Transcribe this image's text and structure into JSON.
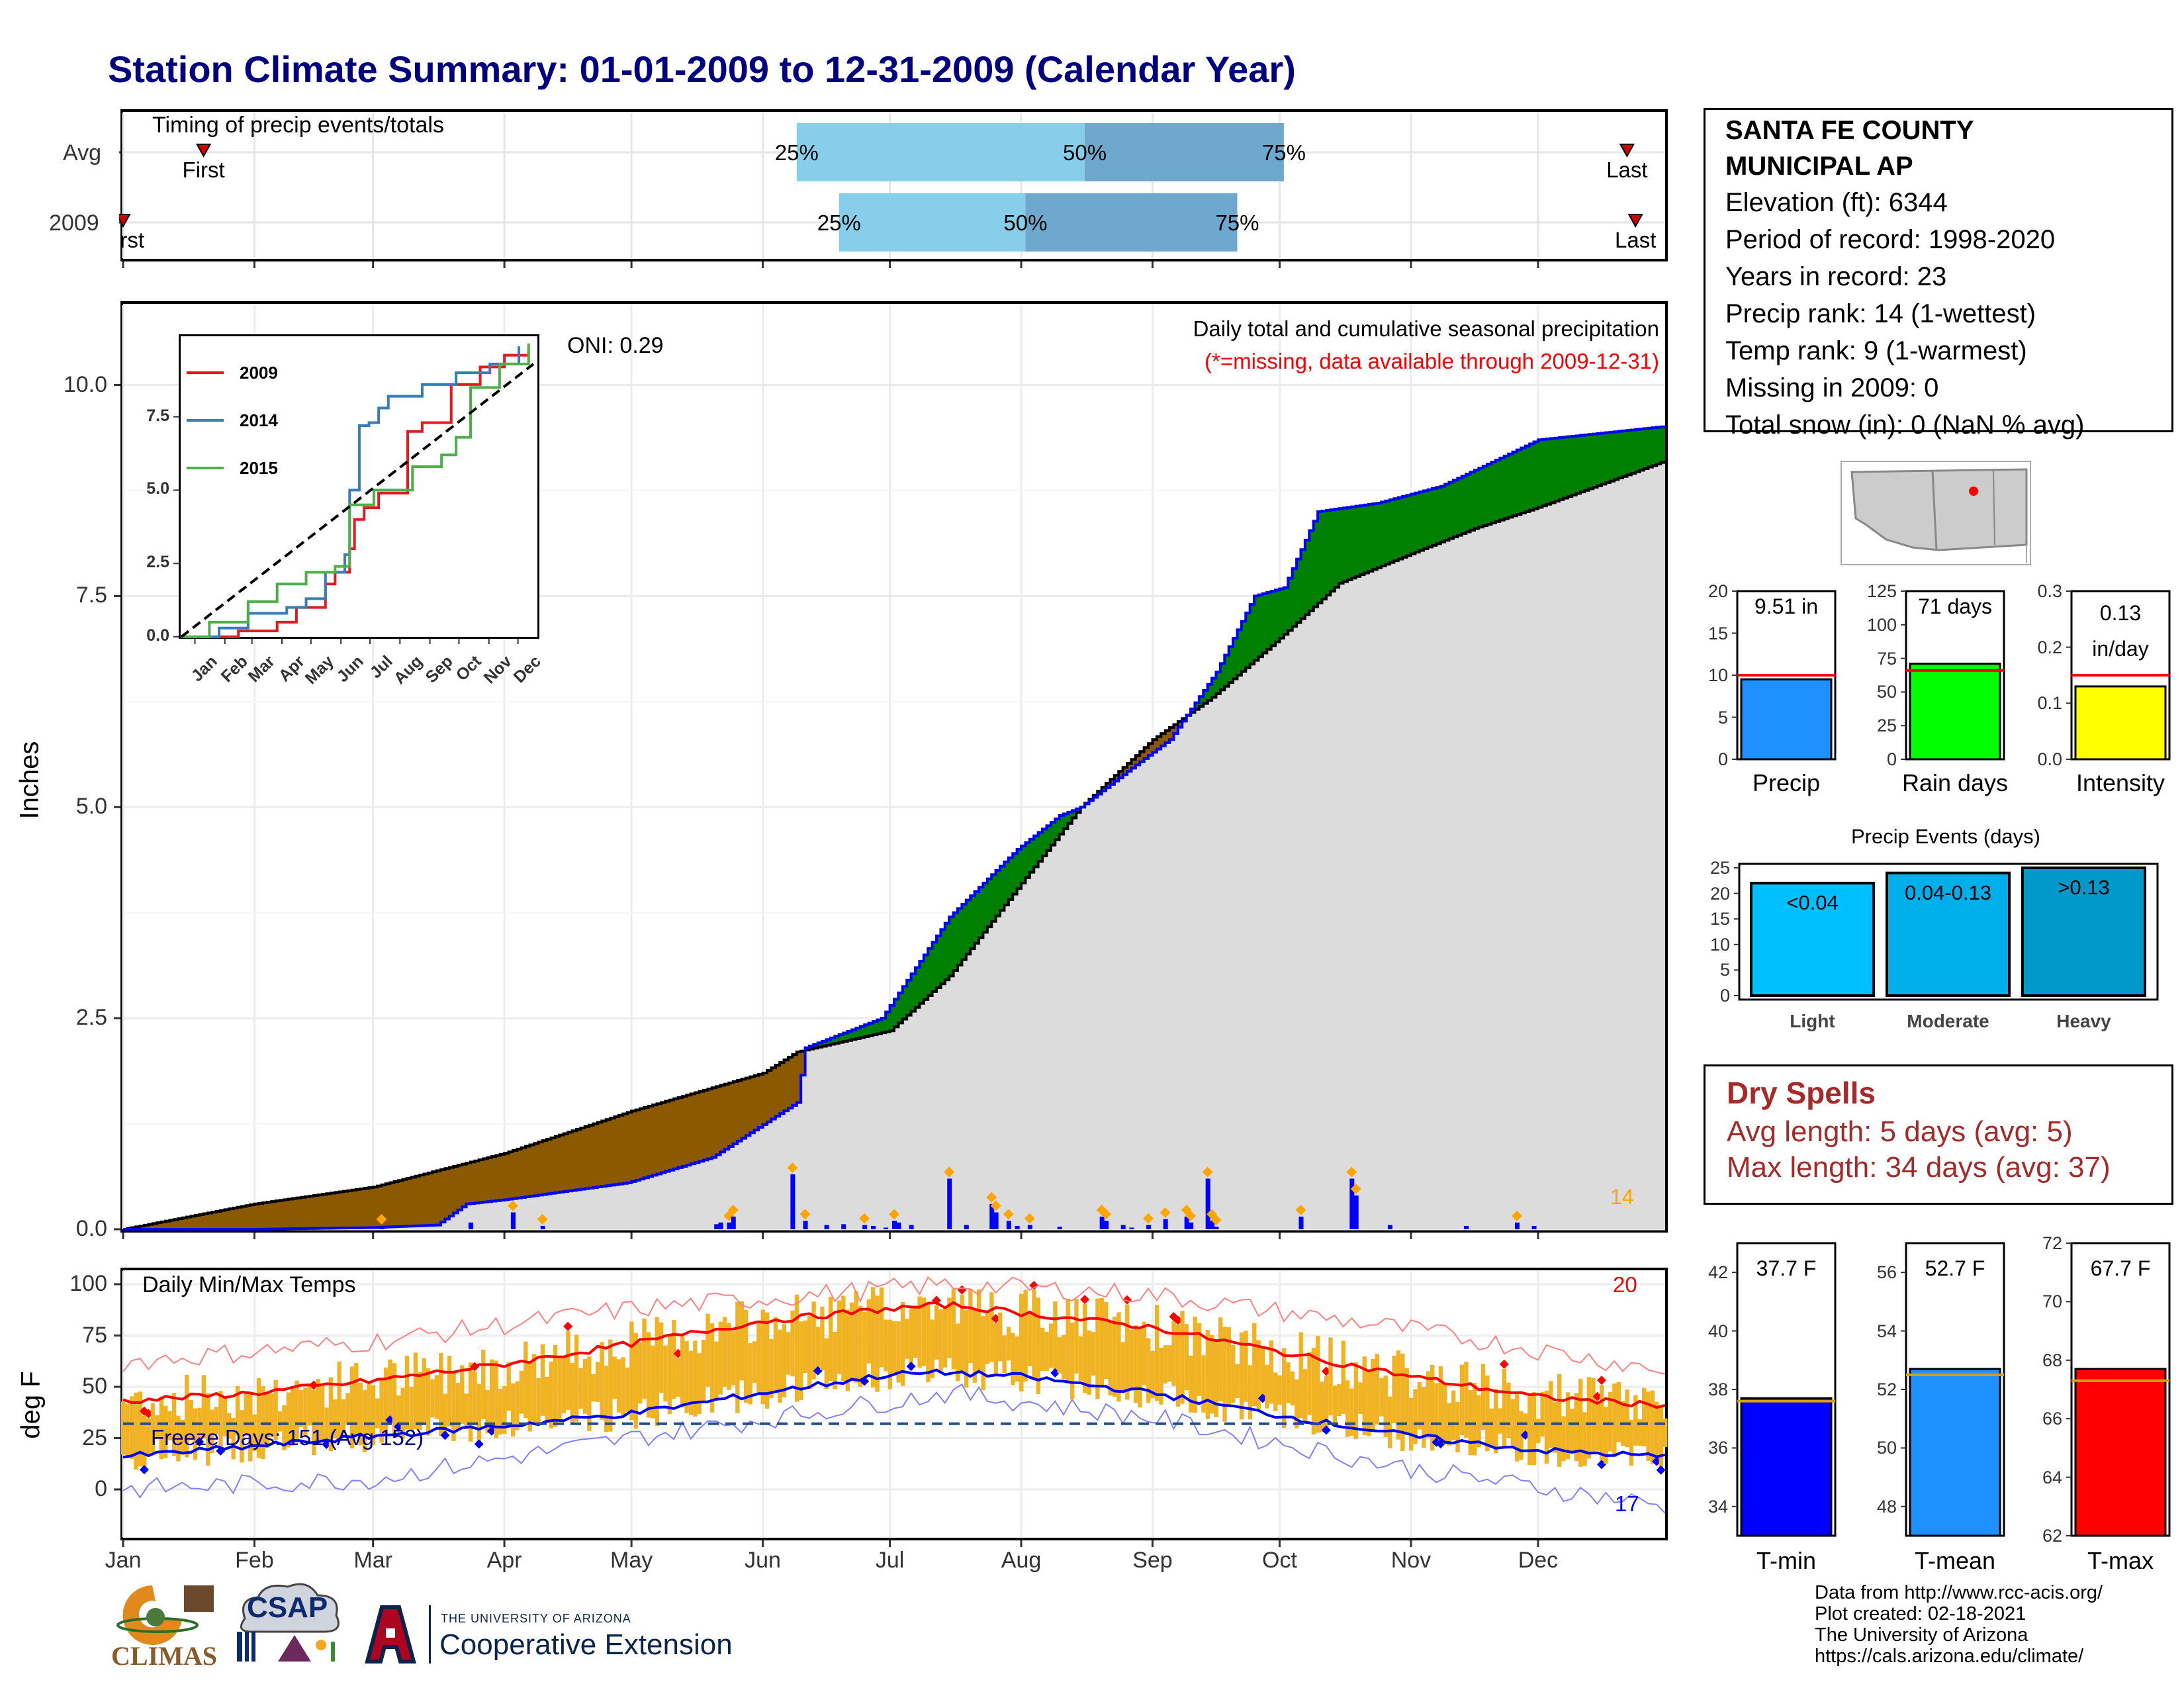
{
  "title": "Station Climate Summary: 01-01-2009 to 12-31-2009 (Calendar Year)",
  "colors": {
    "above_avg": "#008000",
    "below_avg": "#8B5A00",
    "cumulative_fill": "#DCDCDC",
    "daily_bar": "#0000FF",
    "event_marker": "#FFA500",
    "range_bar": "#F0B323",
    "tmax_line": "#FF0000",
    "tmin_line": "#0000FF",
    "timing_q1": "#87CEEB",
    "timing_q2": "#6FA8CF",
    "title": "#000080",
    "dry_spell": "#A52A2A"
  },
  "timing_panel": {
    "heading": "Timing of precip events/totals",
    "rows": [
      {
        "label": "Avg",
        "first_label": "First",
        "last_label": "Last",
        "q25": "25%",
        "q50": "50%",
        "q75": "75%"
      },
      {
        "label": "2009",
        "first_label": "First",
        "last_label": "Last",
        "q25": "25%",
        "q50": "50%",
        "q75": "75%"
      }
    ]
  },
  "precip_panel": {
    "subtitle": "Daily total and cumulative seasonal precipitation",
    "missing_note": "(*=missing, data available through 2009-12-31)",
    "oni": "ONI: 0.29",
    "ylabel": "Inches",
    "yticks": [
      "0.0",
      "2.5",
      "5.0",
      "7.5",
      "10.0"
    ],
    "count_label": "14"
  },
  "inset": {
    "yticks": [
      "0.0",
      "2.5",
      "5.0",
      "7.5"
    ],
    "months": [
      "Jan",
      "Feb",
      "Mar",
      "Apr",
      "May",
      "Jun",
      "Jul",
      "Aug",
      "Sep",
      "Oct",
      "Nov",
      "Dec"
    ],
    "legend": [
      {
        "name": "2009",
        "color": "#E41A1C"
      },
      {
        "name": "2014",
        "color": "#377EB8"
      },
      {
        "name": "2015",
        "color": "#4DAF4A"
      }
    ]
  },
  "temp_panel": {
    "title": "Daily Min/Max Temps",
    "ylabel": "deg F",
    "yticks": [
      "0",
      "25",
      "50",
      "75",
      "100"
    ],
    "freeze_label": "Freeze Days: 151 (Avg 152)",
    "max_count": "20",
    "min_count": "17"
  },
  "x_months": [
    "Jan",
    "Feb",
    "Mar",
    "Apr",
    "May",
    "Jun",
    "Jul",
    "Aug",
    "Sep",
    "Oct",
    "Nov",
    "Dec"
  ],
  "station": {
    "name_line1": "SANTA FE COUNTY",
    "name_line2": "MUNICIPAL AP",
    "elevation": "Elevation (ft): 6344",
    "period": "Period of record: 1998-2020",
    "years": "Years in record: 23",
    "precip_rank": "Precip rank: 14 (1-wettest)",
    "temp_rank": "Temp rank: 9 (1-warmest)",
    "missing": "Missing in 2009: 0",
    "snow": "Total snow (in): 0 (NaN % avg)"
  },
  "mini_bars": [
    {
      "name": "Precip",
      "value_label": "9.51 in",
      "yticks": [
        "0",
        "5",
        "10",
        "15",
        "20"
      ],
      "color": "#1E90FF"
    },
    {
      "name": "Rain days",
      "value_label": "71 days",
      "yticks": [
        "0",
        "25",
        "50",
        "75",
        "100",
        "125"
      ],
      "color": "#00FF00"
    },
    {
      "name": "Intensity",
      "value_label": "0.13 in/day",
      "yticks": [
        "0.0",
        "0.1",
        "0.2",
        "0.3"
      ],
      "color": "#FFFF00"
    }
  ],
  "events": {
    "title": "Precip Events (days)",
    "yticks": [
      "0",
      "5",
      "10",
      "15",
      "20",
      "25"
    ],
    "bars": [
      {
        "name": "Light",
        "range": "<0.04",
        "color": "#00BFFF"
      },
      {
        "name": "Moderate",
        "range": "0.04-0.13",
        "color": "#00AEEA"
      },
      {
        "name": "Heavy",
        "range": ">0.13",
        "color": "#0099C9"
      }
    ]
  },
  "dry_spells": {
    "title": "Dry Spells",
    "avg": "Avg length: 5 days (avg: 5)",
    "max": "Max length: 34 days (avg: 37)"
  },
  "temp_bars": [
    {
      "name": "T-min",
      "value_label": "37.7 F",
      "yticks": [
        "34",
        "36",
        "38",
        "40",
        "42"
      ],
      "color": "#0000FF"
    },
    {
      "name": "T-mean",
      "value_label": "52.7 F",
      "yticks": [
        "48",
        "50",
        "52",
        "54",
        "56"
      ],
      "color": "#1E90FF"
    },
    {
      "name": "T-max",
      "value_label": "67.7 F",
      "yticks": [
        "62",
        "64",
        "66",
        "68",
        "70",
        "72"
      ],
      "color": "#FF0000"
    }
  ],
  "credits": [
    "Data from http://www.rcc-acis.org/",
    "Plot created: 02-18-2021",
    "The University of Arizona",
    "https://cals.arizona.edu/climate/"
  ],
  "logos": {
    "climas": "CLIMAS",
    "csap": "CSAP",
    "ua_small": "THE UNIVERSITY OF ARIZONA",
    "ua_big": "Cooperative Extension"
  },
  "chart_data": [
    {
      "type": "line",
      "title": "Daily total and cumulative seasonal precipitation",
      "ylabel": "Inches",
      "ylim": [
        0,
        10
      ],
      "x_unit": "day of year",
      "series": [
        {
          "name": "2009",
          "x": [
            1,
            32,
            60,
            75,
            82,
            91,
            120,
            140,
            160,
            162,
            180,
            196,
            212,
            222,
            227,
            240,
            248,
            259,
            268,
            275,
            283,
            297,
            312,
            335,
            365
          ],
          "values": [
            0.0,
            0.0,
            0.02,
            0.05,
            0.3,
            0.35,
            0.55,
            0.85,
            1.5,
            2.15,
            2.5,
            3.7,
            4.5,
            4.9,
            5.0,
            5.5,
            5.8,
            6.6,
            7.5,
            7.6,
            8.5,
            8.6,
            8.8,
            9.35,
            9.51
          ]
        },
        {
          "name": "Avg",
          "x": [
            1,
            32,
            60,
            91,
            121,
            152,
            160,
            182,
            196,
            213,
            227,
            244,
            258,
            274,
            288,
            305,
            320,
            335,
            365
          ],
          "values": [
            0.0,
            0.3,
            0.5,
            0.9,
            1.4,
            1.85,
            2.1,
            2.35,
            3.0,
            4.1,
            5.0,
            5.8,
            6.3,
            7.0,
            7.65,
            8.0,
            8.3,
            8.55,
            9.1
          ]
        }
      ],
      "daily_precip": {
        "day": [
          62,
          83,
          93,
          100,
          141,
          142,
          144,
          145,
          159,
          162,
          167,
          171,
          176,
          178,
          181,
          183,
          184,
          187,
          196,
          200,
          206,
          207,
          210,
          212,
          215,
          222,
          232,
          233,
          237,
          239,
          243,
          247,
          252,
          253,
          257,
          258,
          259,
          279,
          291,
          292,
          300,
          318,
          330,
          334
        ],
        "inches": [
          0.04,
          0.08,
          0.2,
          0.04,
          0.06,
          0.08,
          0.08,
          0.15,
          0.65,
          0.1,
          0.05,
          0.06,
          0.05,
          0.04,
          0.02,
          0.1,
          0.08,
          0.05,
          0.6,
          0.05,
          0.3,
          0.2,
          0.1,
          0.04,
          0.05,
          0.03,
          0.15,
          0.1,
          0.05,
          0.02,
          0.05,
          0.12,
          0.15,
          0.08,
          0.6,
          0.1,
          0.03,
          0.15,
          0.6,
          0.4,
          0.05,
          0.04,
          0.08,
          0.04
        ]
      }
    },
    {
      "type": "line",
      "title": "Daily Min/Max Temps",
      "ylabel": "deg F",
      "ylim": [
        -25,
        105
      ],
      "x_unit": "day of year",
      "series": [
        {
          "name": "Avg Tmax",
          "x": [
            1,
            32,
            60,
            91,
            121,
            152,
            182,
            196,
            213,
            244,
            274,
            305,
            335,
            365
          ],
          "values": [
            43,
            47,
            53,
            61,
            71,
            82,
            88,
            90,
            86,
            79,
            67,
            55,
            45,
            41
          ]
        },
        {
          "name": "Avg Tmin",
          "x": [
            1,
            32,
            60,
            91,
            121,
            152,
            182,
            196,
            213,
            244,
            274,
            305,
            335,
            365
          ],
          "values": [
            16,
            21,
            26,
            31,
            37,
            47,
            56,
            57,
            55,
            47,
            36,
            26,
            19,
            16
          ]
        },
        {
          "name": "Record high",
          "x": [
            1,
            60,
            121,
            196,
            244,
            305,
            365
          ],
          "values": [
            62,
            72,
            88,
            100,
            95,
            78,
            58
          ]
        },
        {
          "name": "Record low",
          "x": [
            1,
            60,
            121,
            196,
            244,
            305,
            365
          ],
          "values": [
            0,
            5,
            25,
            47,
            35,
            10,
            -8
          ]
        },
        {
          "name": "Freeze line",
          "x": [
            1,
            365
          ],
          "values": [
            32,
            32
          ]
        }
      ]
    },
    {
      "type": "bar",
      "categories": [
        "Precip"
      ],
      "values": [
        9.51
      ],
      "avg": 10.0,
      "ylim": [
        0,
        20
      ]
    },
    {
      "type": "bar",
      "categories": [
        "Rain days"
      ],
      "values": [
        71
      ],
      "avg": 66,
      "ylim": [
        0,
        125
      ]
    },
    {
      "type": "bar",
      "categories": [
        "Intensity"
      ],
      "values": [
        0.13
      ],
      "avg": 0.15,
      "ylim": [
        0,
        0.3
      ]
    },
    {
      "type": "bar",
      "title": "Precip Events (days)",
      "categories": [
        "Light",
        "Moderate",
        "Heavy"
      ],
      "values": [
        22,
        24,
        25
      ],
      "ylim": [
        0,
        25
      ]
    },
    {
      "type": "bar",
      "categories": [
        "T-min"
      ],
      "values": [
        37.7
      ],
      "avg": 37.6,
      "ylim": [
        33,
        43
      ]
    },
    {
      "type": "bar",
      "categories": [
        "T-mean"
      ],
      "values": [
        52.7
      ],
      "avg": 52.5,
      "ylim": [
        47,
        57
      ]
    },
    {
      "type": "bar",
      "categories": [
        "T-max"
      ],
      "values": [
        67.7
      ],
      "avg": 67.3,
      "ylim": [
        62,
        72
      ]
    },
    {
      "type": "bar",
      "title": "Timing of precip events/totals",
      "categories": [
        "Avg",
        "2009"
      ],
      "x_unit": "day of year",
      "first": [
        20,
        1
      ],
      "q25": [
        160,
        170
      ],
      "q50": [
        228,
        214
      ],
      "q75": [
        275,
        264
      ],
      "last": [
        356,
        358
      ]
    }
  ]
}
